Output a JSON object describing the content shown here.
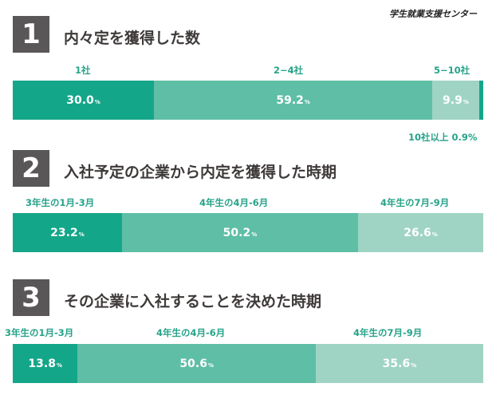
{
  "brand": "学生就業支援センター",
  "chart_data": [
    {
      "type": "bar",
      "number": "1",
      "title": "内々定を獲得した数",
      "categories": [
        "1社",
        "2−4社",
        "5−10社",
        "10社以上"
      ],
      "values": [
        30.0,
        59.2,
        9.9,
        0.9
      ],
      "value_labels": [
        "30.0",
        "59.2",
        "9.9",
        "0.9"
      ],
      "unit": "%",
      "note": "10社以上 0.9%",
      "colors": [
        "#14a689",
        "#5fbea6",
        "#9fd4c4",
        "#14a689"
      ]
    },
    {
      "type": "bar",
      "number": "2",
      "title": "入社予定の企業から内定を獲得した時期",
      "categories": [
        "3年生の1月-3月",
        "4年生の4月-6月",
        "4年生の7月-9月"
      ],
      "values": [
        23.2,
        50.2,
        26.6
      ],
      "value_labels": [
        "23.2",
        "50.2",
        "26.6"
      ],
      "unit": "%",
      "colors": [
        "#14a689",
        "#5fbea6",
        "#9fd4c4"
      ]
    },
    {
      "type": "bar",
      "number": "3",
      "title": "その企業に入社することを決めた時期",
      "categories": [
        "3年生の1月-3月",
        "4年生の4月-6月",
        "4年生の7月-9月"
      ],
      "values": [
        13.8,
        50.6,
        35.6
      ],
      "value_labels": [
        "13.8",
        "50.6",
        "35.6"
      ],
      "unit": "%",
      "colors": [
        "#14a689",
        "#5fbea6",
        "#9fd4c4"
      ]
    }
  ]
}
